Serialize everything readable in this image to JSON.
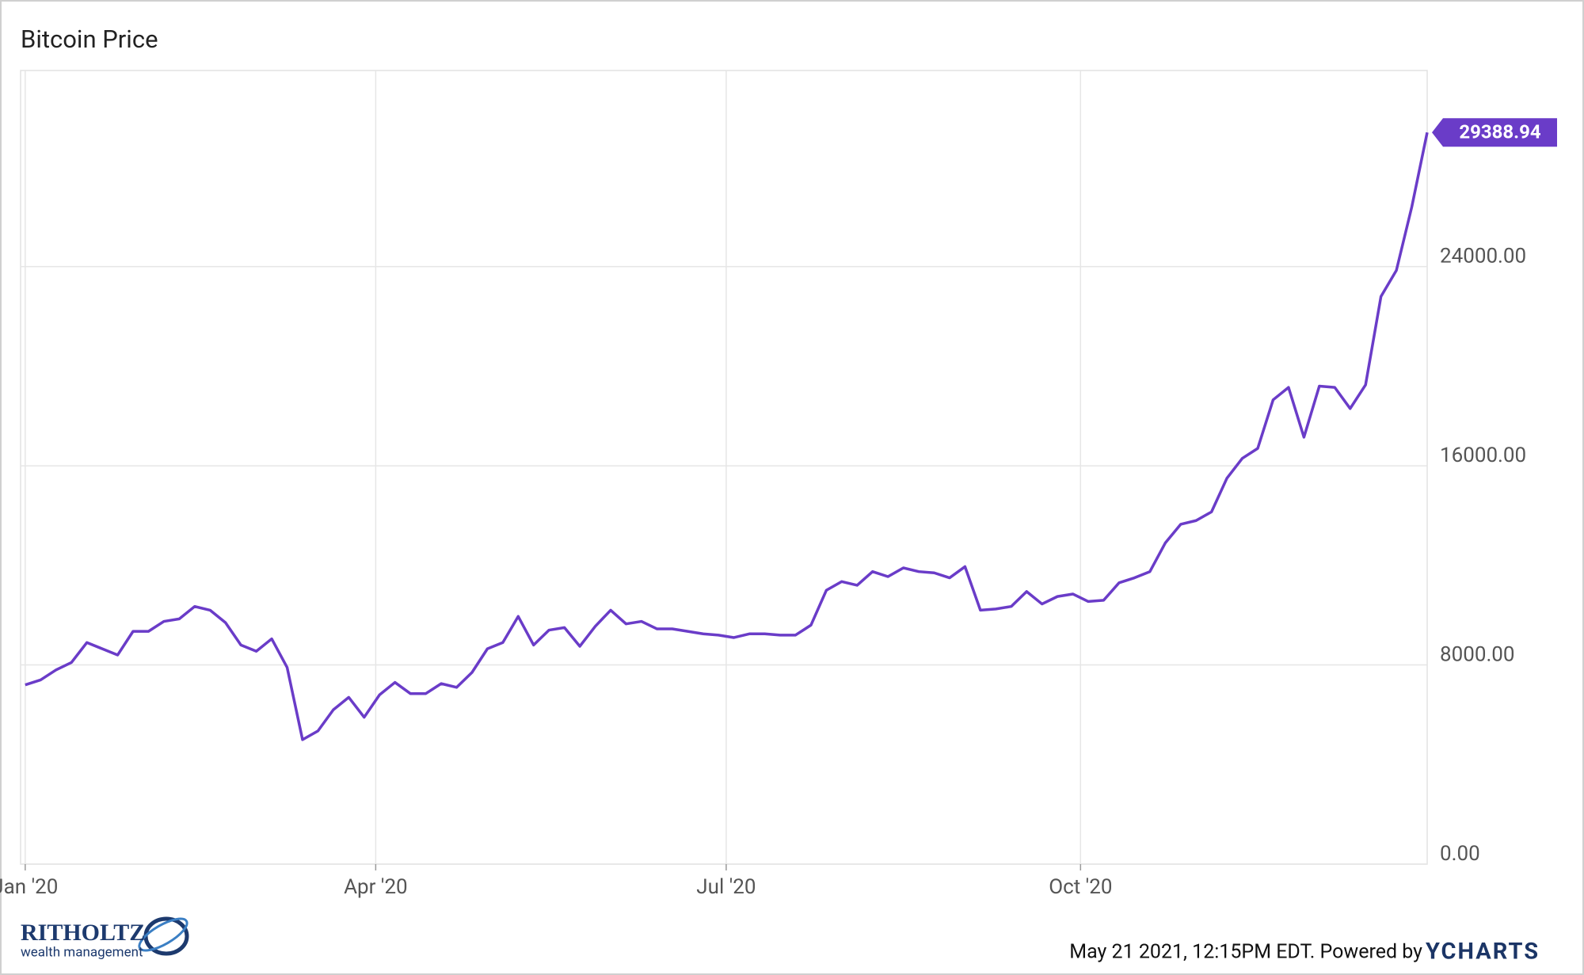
{
  "chart_data": {
    "type": "line",
    "title": "Bitcoin Price",
    "series": [
      {
        "name": "Bitcoin Price",
        "color": "#6a3cc8",
        "values": [
          7200,
          7400,
          7800,
          8100,
          8900,
          8650,
          8400,
          9350,
          9350,
          9750,
          9850,
          10350,
          10200,
          9700,
          8800,
          8550,
          9050,
          7900,
          5000,
          5350,
          6200,
          6700,
          5900,
          6800,
          7300,
          6850,
          6850,
          7250,
          7100,
          7700,
          8650,
          8900,
          9950,
          8800,
          9400,
          9500,
          8750,
          9550,
          10200,
          9650,
          9750,
          9450,
          9450,
          9350,
          9250,
          9200,
          9100,
          9250,
          9250,
          9200,
          9200,
          9600,
          11000,
          11350,
          11200,
          11750,
          11550,
          11900,
          11750,
          11700,
          11500,
          11950,
          10200,
          10250,
          10350,
          10950,
          10450,
          10750,
          10850,
          10550,
          10600,
          11300,
          11500,
          11750,
          12900,
          13650,
          13800,
          14150,
          15500,
          16300,
          16700,
          18650,
          19150,
          17150,
          19200,
          19150,
          18300,
          19250,
          22800,
          23850,
          26400,
          29388.94
        ]
      }
    ],
    "xlim": [
      -0.3,
      91
    ],
    "xticks": [
      {
        "value": 0,
        "label": "Jan '20"
      },
      {
        "value": 22.75,
        "label": "Apr '20"
      },
      {
        "value": 45.5,
        "label": "Jul '20"
      },
      {
        "value": 68.5,
        "label": "Oct '20"
      }
    ],
    "ylim": [
      0,
      31880
    ],
    "yticks": [
      {
        "value": 0,
        "label": "0.00"
      },
      {
        "value": 8000,
        "label": "8000.00"
      },
      {
        "value": 16000,
        "label": "16000.00"
      },
      {
        "value": 24000,
        "label": "24000.00"
      }
    ],
    "grid": true,
    "footer": "May 21 2021, 12:15PM EDT. Powered by",
    "brand": "YCHARTS",
    "logo": {
      "name": "RITHOLTZ",
      "tagline": "wealth management"
    }
  }
}
